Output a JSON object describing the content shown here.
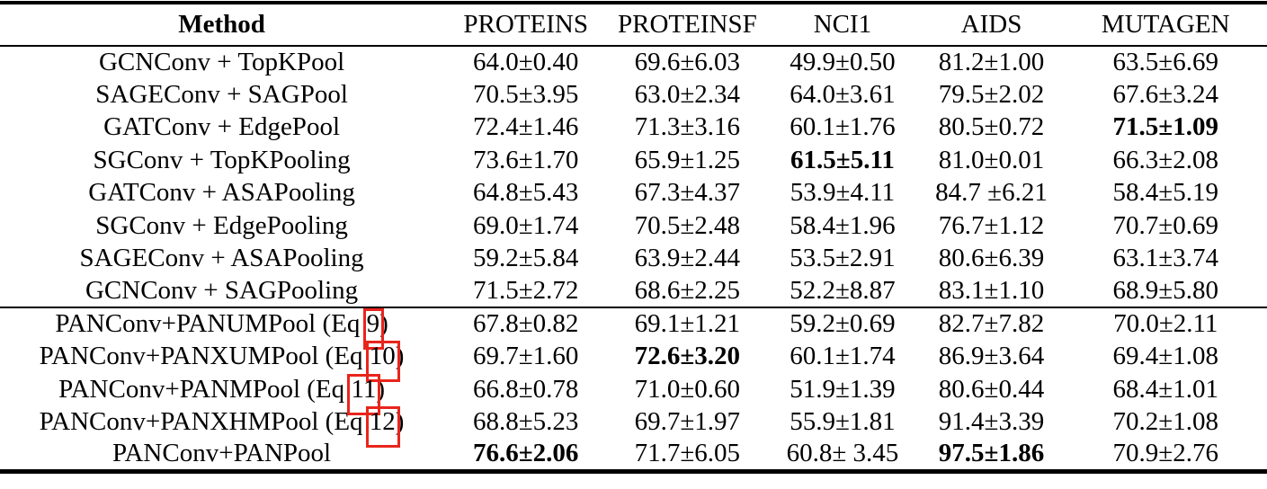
{
  "colors": {
    "eq_box_red": "#e8251c",
    "ink": "#000000",
    "background": "#ffffff"
  },
  "table": {
    "columns": [
      "Method",
      "PROTEINS",
      "PROTEINSF",
      "NCI1",
      "AIDS",
      "MUTAGEN"
    ],
    "sections": [
      {
        "rows": [
          {
            "method": "GCNConv + TopKPool",
            "values": [
              {
                "v": "64.0±0.40"
              },
              {
                "v": "69.6±6.03"
              },
              {
                "v": "49.9±0.50"
              },
              {
                "v": "81.2±1.00"
              },
              {
                "v": "63.5±6.69"
              }
            ]
          },
          {
            "method": "SAGEConv + SAGPool",
            "values": [
              {
                "v": "70.5±3.95"
              },
              {
                "v": "63.0±2.34"
              },
              {
                "v": "64.0±3.61"
              },
              {
                "v": "79.5±2.02"
              },
              {
                "v": "67.6±3.24"
              }
            ]
          },
          {
            "method": "GATConv + EdgePool",
            "values": [
              {
                "v": "72.4±1.46"
              },
              {
                "v": "71.3±3.16"
              },
              {
                "v": "60.1±1.76"
              },
              {
                "v": "80.5±0.72"
              },
              {
                "v": "71.5±1.09",
                "b": true
              }
            ]
          },
          {
            "method": "SGConv + TopKPooling",
            "values": [
              {
                "v": "73.6±1.70"
              },
              {
                "v": "65.9±1.25"
              },
              {
                "v": "61.5±5.11",
                "b": true
              },
              {
                "v": "81.0±0.01"
              },
              {
                "v": "66.3±2.08"
              }
            ]
          },
          {
            "method": "GATConv + ASAPooling",
            "values": [
              {
                "v": "64.8±5.43"
              },
              {
                "v": "67.3±4.37"
              },
              {
                "v": "53.9±4.11"
              },
              {
                "v": "84.7 ±6.21"
              },
              {
                "v": "58.4±5.19"
              }
            ]
          },
          {
            "method": "SGConv + EdgePooling",
            "values": [
              {
                "v": "69.0±1.74"
              },
              {
                "v": "70.5±2.48"
              },
              {
                "v": "58.4±1.96"
              },
              {
                "v": "76.7±1.12"
              },
              {
                "v": "70.7±0.69"
              }
            ]
          },
          {
            "method": "SAGEConv + ASAPooling",
            "values": [
              {
                "v": "59.2±5.84"
              },
              {
                "v": "63.9±2.44"
              },
              {
                "v": "53.5±2.91"
              },
              {
                "v": "80.6±6.39"
              },
              {
                "v": "63.1±3.74"
              }
            ]
          },
          {
            "method": "GCNConv + SAGPooling",
            "values": [
              {
                "v": "71.5±2.72"
              },
              {
                "v": "68.6±2.25"
              },
              {
                "v": "52.2±8.87"
              },
              {
                "v": "83.1±1.10"
              },
              {
                "v": "68.9±5.80"
              }
            ]
          }
        ]
      },
      {
        "rows": [
          {
            "method_pre": "PANConv+PANUMPool (Eq ",
            "eq": "9",
            "method_post": ")",
            "values": [
              {
                "v": "67.8±0.82"
              },
              {
                "v": "69.1±1.21"
              },
              {
                "v": "59.2±0.69"
              },
              {
                "v": "82.7±7.82"
              },
              {
                "v": "70.0±2.11"
              }
            ]
          },
          {
            "method_pre": "PANConv+PANXUMPool (Eq ",
            "eq": "10",
            "method_post": ")",
            "values": [
              {
                "v": "69.7±1.60"
              },
              {
                "v": "72.6±3.20",
                "b": true
              },
              {
                "v": "60.1±1.74"
              },
              {
                "v": "86.9±3.64"
              },
              {
                "v": "69.4±1.08"
              }
            ]
          },
          {
            "method_pre": "PANConv+PANMPool (Eq ",
            "eq": "11",
            "method_post": ")",
            "values": [
              {
                "v": "66.8±0.78"
              },
              {
                "v": "71.0±0.60"
              },
              {
                "v": "51.9±1.39"
              },
              {
                "v": "80.6±0.44"
              },
              {
                "v": "68.4±1.01"
              }
            ]
          },
          {
            "method_pre": "PANConv+PANXHMPool (Eq ",
            "eq": "12",
            "method_post": ")",
            "values": [
              {
                "v": "68.8±5.23"
              },
              {
                "v": "69.7±1.97"
              },
              {
                "v": "55.9±1.81"
              },
              {
                "v": "91.4±3.39"
              },
              {
                "v": "70.2±1.08"
              }
            ]
          },
          {
            "method": "PANConv+PANPool",
            "values": [
              {
                "v": "76.6±2.06",
                "b": true
              },
              {
                "v": "71.7±6.05"
              },
              {
                "v": "60.8± 3.45"
              },
              {
                "v": "97.5±1.86",
                "b": true
              },
              {
                "v": "70.9±2.76"
              }
            ]
          }
        ]
      }
    ]
  }
}
